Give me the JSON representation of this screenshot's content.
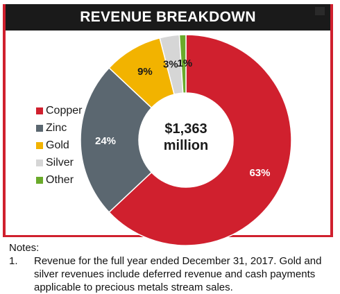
{
  "chart_data": {
    "type": "pie",
    "title": "REVENUE BREAKDOWN",
    "center_label": [
      "$1,363",
      "million"
    ],
    "slices": [
      {
        "name": "Copper",
        "value": 63,
        "label": "63%",
        "color": "#d0202e"
      },
      {
        "name": "Zinc",
        "value": 24,
        "label": "24%",
        "color": "#5b6770"
      },
      {
        "name": "Gold",
        "value": 9,
        "label": "9%",
        "color": "#f2b300"
      },
      {
        "name": "Silver",
        "value": 3,
        "label": "3%",
        "color": "#d6d6d6"
      },
      {
        "name": "Other",
        "value": 1,
        "label": "1%",
        "color": "#6aaa2a"
      }
    ],
    "legend_position": "left"
  },
  "notes": {
    "heading": "Notes:",
    "items": [
      {
        "num": "1.",
        "text": "Revenue for the full year ended December 31, 2017. Gold and silver revenues include deferred revenue and cash payments applicable to precious metals stream sales."
      }
    ]
  }
}
